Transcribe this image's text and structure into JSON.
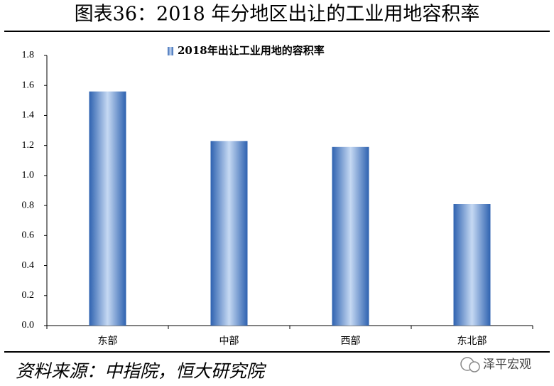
{
  "chart_data": {
    "type": "bar",
    "title": "图表36：2018 年分地区出让的工业用地容积率",
    "categories": [
      "东部",
      "中部",
      "西部",
      "东北部"
    ],
    "series": [
      {
        "name": "2018年出让工业用地的容积率",
        "color": "#2e62b0",
        "values": [
          1.56,
          1.23,
          1.19,
          0.81
        ]
      }
    ],
    "ylim": [
      0,
      1.8
    ],
    "yticks": [
      {
        "value": 0,
        "label": "0.0"
      },
      0.2,
      0.4,
      0.6,
      0.8,
      {
        "value": 1,
        "label": "1.0"
      },
      1.2,
      1.4,
      1.6,
      1.8
    ],
    "grid": false,
    "legend": "top"
  },
  "source": "资料来源：中指院，恒大研究院",
  "watermark": "泽平宏观"
}
